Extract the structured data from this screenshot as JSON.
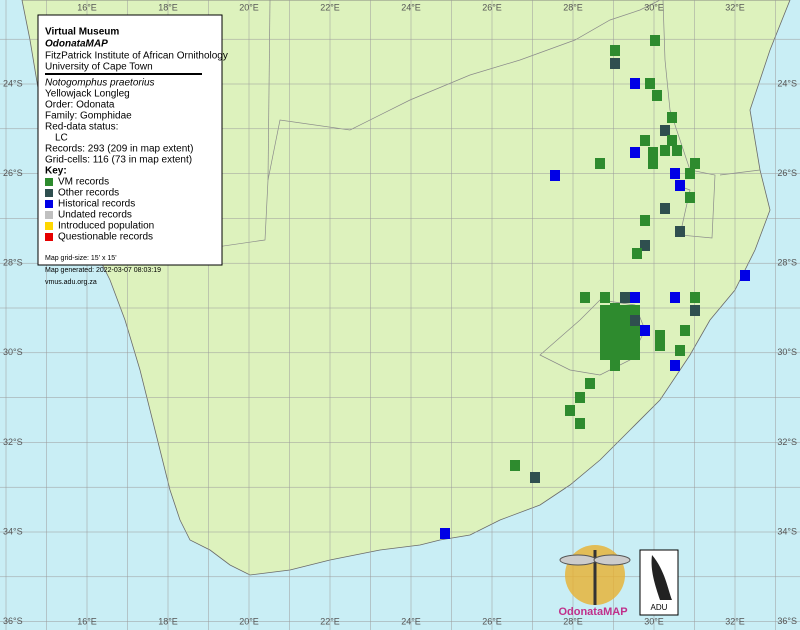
{
  "legend": {
    "title": "Virtual Museum",
    "project": "OdonataMAP",
    "institute": "FitzPatrick Institute of African Ornithology",
    "university": "University of Cape Town",
    "species": "Notogomphus praetorius",
    "common_name": "Yellowjack Longleg",
    "order": "Order: Odonata",
    "family": "Family: Gomphidae",
    "red_data": "Red-data status:",
    "status": "LC",
    "records": "Records: 293 (209 in map extent)",
    "grid_cells": "Grid-cells: 116 (73 in map extent)",
    "key_title": "Key:",
    "key": [
      {
        "label": "VM records",
        "color": "#2e8b2e"
      },
      {
        "label": "Other records",
        "color": "#2f4f4f"
      },
      {
        "label": "Historical records",
        "color": "#0000e6"
      },
      {
        "label": "Undated records",
        "color": "#c0c0c0"
      },
      {
        "label": "Introduced population",
        "color": "#ffd700"
      },
      {
        "label": "Questionable records",
        "color": "#e60000"
      }
    ]
  },
  "footer": {
    "grid_size": "Map grid-size: 15' x 15'",
    "generated": "Map generated: 2022-03-07 08:03:19",
    "site": "vmus.adu.org.za"
  },
  "longitudes": [
    "16°E",
    "18°E",
    "20°E",
    "22°E",
    "24°E",
    "26°E",
    "28°E",
    "30°E",
    "32°E"
  ],
  "latitudes": [
    "24°S",
    "26°S",
    "28°S",
    "30°S",
    "32°S",
    "34°S",
    "36°S"
  ],
  "logos": {
    "odonata": "OdonataMAP",
    "adu": "ADU"
  }
}
